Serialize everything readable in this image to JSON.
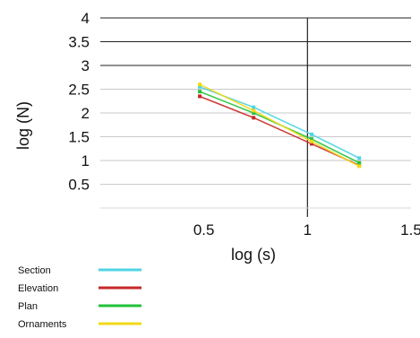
{
  "chart_data": {
    "type": "line",
    "title": "",
    "xlabel": "log (s)",
    "ylabel": "log (N)",
    "xlim": [
      0,
      1.5
    ],
    "ylim": [
      0,
      4
    ],
    "x_ticks": [
      {
        "value": 0.5,
        "label": "0.5"
      },
      {
        "value": 1,
        "label": "1"
      },
      {
        "value": 1.5,
        "label": "1.5"
      }
    ],
    "y_ticks": [
      {
        "value": 0.5,
        "label": "0.5"
      },
      {
        "value": 1,
        "label": "1"
      },
      {
        "value": 1.5,
        "label": "1.5"
      },
      {
        "value": 2,
        "label": "2"
      },
      {
        "value": 2.5,
        "label": "2.5"
      },
      {
        "value": 3,
        "label": "3"
      },
      {
        "value": 3.5,
        "label": "3.5"
      },
      {
        "value": 4,
        "label": "4"
      }
    ],
    "reference_line_x": 1,
    "legend_position": "bottom-left",
    "series": [
      {
        "name": "Section",
        "color": "#4fd4e4",
        "x": [
          0.48,
          0.74,
          1.02,
          1.25
        ],
        "y": [
          2.55,
          2.12,
          1.55,
          1.05
        ]
      },
      {
        "name": "Elevation",
        "color": "#c62828",
        "x": [
          0.48,
          0.74,
          1.02,
          1.25
        ],
        "y": [
          2.35,
          1.9,
          1.35,
          0.9
        ]
      },
      {
        "name": "Plan",
        "color": "#22c33a",
        "x": [
          0.48,
          0.74,
          1.02,
          1.25
        ],
        "y": [
          2.45,
          2.0,
          1.45,
          0.95
        ]
      },
      {
        "name": "Ornaments",
        "color": "#f2d817",
        "x": [
          0.48,
          0.74,
          1.02,
          1.25
        ],
        "y": [
          2.6,
          2.05,
          1.4,
          0.88
        ]
      }
    ]
  }
}
